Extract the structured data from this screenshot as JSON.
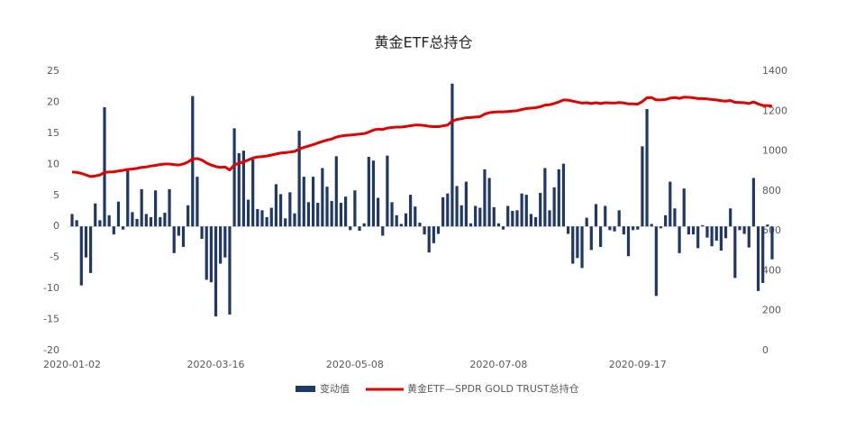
{
  "chart_data": {
    "type": "bar-line",
    "title": "黄金ETF总持仓",
    "categories": [
      "2020-01-02",
      null,
      null,
      null,
      null,
      null,
      null,
      null,
      null,
      null,
      null,
      null,
      null,
      null,
      null,
      null,
      null,
      null,
      null,
      null,
      null,
      null,
      null,
      null,
      null,
      null,
      null,
      null,
      null,
      null,
      null,
      "2020-03-16",
      null,
      null,
      null,
      null,
      null,
      null,
      null,
      null,
      null,
      null,
      null,
      null,
      null,
      null,
      null,
      null,
      null,
      null,
      null,
      null,
      null,
      null,
      null,
      null,
      null,
      null,
      null,
      null,
      null,
      "2020-05-08",
      null,
      null,
      null,
      null,
      null,
      null,
      null,
      null,
      null,
      null,
      null,
      null,
      null,
      null,
      null,
      null,
      null,
      null,
      null,
      null,
      null,
      null,
      null,
      null,
      null,
      null,
      null,
      null,
      null,
      null,
      "2020-07-08",
      null,
      null,
      null,
      null,
      null,
      null,
      null,
      null,
      null,
      null,
      null,
      null,
      null,
      null,
      null,
      null,
      null,
      null,
      null,
      null,
      null,
      null,
      null,
      null,
      null,
      null,
      null,
      null,
      null,
      "2020-09-17",
      null,
      null,
      null,
      null,
      null,
      null,
      null,
      null,
      null,
      null,
      null,
      null,
      null,
      null,
      null,
      null,
      null,
      null,
      null,
      null,
      null,
      null,
      null,
      null,
      null,
      null,
      null,
      null,
      null
    ],
    "series": [
      {
        "name": "变动值",
        "type": "bar",
        "color": "#203864",
        "values": [
          2,
          1,
          -9.5,
          -5,
          -7.5,
          3.7,
          1,
          19.2,
          1.8,
          -1.3,
          4,
          -0.5,
          9,
          2.3,
          1.2,
          6,
          2,
          1.5,
          5.8,
          1.5,
          2.2,
          6,
          -4.3,
          -1.5,
          -3.3,
          3.4,
          21,
          8,
          -2,
          -8.6,
          -9,
          -14.5,
          -6,
          -5,
          -14.2,
          15.8,
          11.8,
          12.2,
          4.3,
          10.8,
          2.8,
          2.6,
          1.5,
          3,
          6.8,
          5.2,
          1.3,
          5.5,
          2.1,
          15.4,
          8,
          3.9,
          8,
          3.8,
          9.4,
          6.4,
          4.1,
          11.3,
          3.8,
          4.8,
          -0.6,
          5.8,
          -0.7,
          0.5,
          11.2,
          10.6,
          4.6,
          -1.5,
          11.4,
          3.9,
          1.8,
          0.4,
          2.1,
          5.1,
          3.2,
          0.6,
          -1.3,
          -4.2,
          -2.7,
          -1.2,
          4.7,
          5.3,
          23,
          6.5,
          3.4,
          7.2,
          0.5,
          3.3,
          3,
          9.2,
          7.8,
          3.1,
          0.5,
          -0.5,
          3.3,
          2.5,
          2.6,
          5.3,
          5.1,
          2,
          1.5,
          5.4,
          9.4,
          2.6,
          6.3,
          9.2,
          10.1,
          -1.2,
          -6,
          -5.1,
          -6.7,
          1.4,
          -3.8,
          3.6,
          -3.3,
          3.3,
          -0.6,
          -0.8,
          2.6,
          -1.3,
          -4.8,
          -0.6,
          -0.5,
          12.9,
          18.9,
          0.4,
          -11.2,
          -0.3,
          1.8,
          7.2,
          2.9,
          -4.3,
          6.1,
          -1.3,
          -1.3,
          -3.5,
          0.2,
          -1.8,
          -3.2,
          -2.3,
          -3.9,
          -1.9,
          2.9,
          -8.3,
          -0.6,
          -1.2,
          -3.4,
          7.8,
          -10.4,
          -9.1,
          0.3,
          -5.3
        ]
      },
      {
        "name": "黄金ETF—SPDR GOLD TRUST总持仓",
        "type": "line",
        "axis": "y2",
        "color": "#e00000",
        "values": [
          895,
          893,
          888,
          880,
          872,
          875,
          880,
          893,
          895,
          896,
          900,
          903,
          908,
          910,
          913,
          918,
          920,
          925,
          928,
          932,
          935,
          935,
          932,
          930,
          935,
          945,
          960,
          962,
          955,
          940,
          930,
          922,
          918,
          920,
          905,
          930,
          940,
          945,
          955,
          965,
          970,
          972,
          975,
          980,
          985,
          990,
          992,
          995,
          998,
          1010,
          1018,
          1025,
          1032,
          1040,
          1048,
          1055,
          1060,
          1070,
          1075,
          1078,
          1080,
          1082,
          1085,
          1087,
          1095,
          1105,
          1110,
          1108,
          1115,
          1118,
          1120,
          1120,
          1123,
          1127,
          1130,
          1130,
          1128,
          1124,
          1122,
          1122,
          1126,
          1130,
          1150,
          1158,
          1162,
          1167,
          1168,
          1170,
          1172,
          1185,
          1192,
          1195,
          1196,
          1196,
          1198,
          1200,
          1202,
          1208,
          1213,
          1215,
          1217,
          1222,
          1230,
          1232,
          1238,
          1246,
          1256,
          1255,
          1250,
          1245,
          1240,
          1242,
          1238,
          1242,
          1238,
          1242,
          1241,
          1240,
          1243,
          1241,
          1236,
          1236,
          1235,
          1248,
          1267,
          1268,
          1256,
          1256,
          1258,
          1265,
          1268,
          1264,
          1270,
          1269,
          1267,
          1263,
          1263,
          1261,
          1258,
          1256,
          1252,
          1250,
          1253,
          1244,
          1243,
          1242,
          1238,
          1246,
          1236,
          1228,
          1228,
          1225
        ]
      }
    ],
    "ylim": [
      -20,
      25
    ],
    "yticks": [
      -20,
      -15,
      -10,
      -5,
      0,
      5,
      10,
      15,
      20,
      25
    ],
    "y2lim": [
      0,
      1400
    ],
    "y2ticks": [
      0,
      200,
      400,
      600,
      800,
      1000,
      1200,
      1400
    ],
    "grid": false
  }
}
